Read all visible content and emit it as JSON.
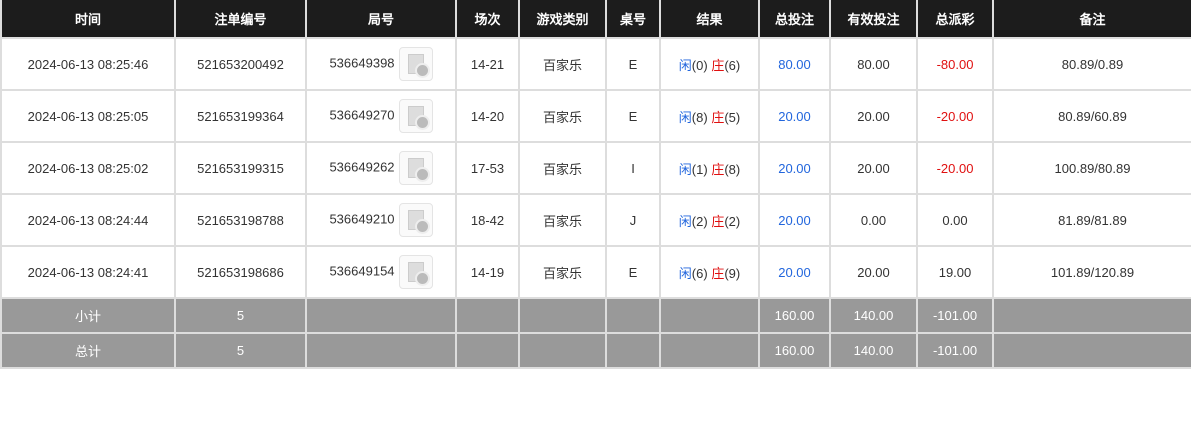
{
  "headers": [
    "时间",
    "注单编号",
    "局号",
    "场次",
    "游戏类别",
    "桌号",
    "结果",
    "总投注",
    "有效投注",
    "总派彩",
    "备注"
  ],
  "rows": [
    {
      "time": "2024-06-13 08:25:46",
      "bet_id": "521653200492",
      "round": "536649398",
      "shoe": "14-21",
      "game": "百家乐",
      "table": "E",
      "player": "闲",
      "player_val": "(0)",
      "banker": "庄",
      "banker_val": "(6)",
      "total_bet": "80.00",
      "valid_bet": "80.00",
      "payout": "-80.00",
      "note": "80.89/0.89"
    },
    {
      "time": "2024-06-13 08:25:05",
      "bet_id": "521653199364",
      "round": "536649270",
      "shoe": "14-20",
      "game": "百家乐",
      "table": "E",
      "player": "闲",
      "player_val": "(8)",
      "banker": "庄",
      "banker_val": "(5)",
      "total_bet": "20.00",
      "valid_bet": "20.00",
      "payout": "-20.00",
      "note": "80.89/60.89"
    },
    {
      "time": "2024-06-13 08:25:02",
      "bet_id": "521653199315",
      "round": "536649262",
      "shoe": "17-53",
      "game": "百家乐",
      "table": "I",
      "player": "闲",
      "player_val": "(1)",
      "banker": "庄",
      "banker_val": "(8)",
      "total_bet": "20.00",
      "valid_bet": "20.00",
      "payout": "-20.00",
      "note": "100.89/80.89"
    },
    {
      "time": "2024-06-13 08:24:44",
      "bet_id": "521653198788",
      "round": "536649210",
      "shoe": "18-42",
      "game": "百家乐",
      "table": "J",
      "player": "闲",
      "player_val": "(2)",
      "banker": "庄",
      "banker_val": "(2)",
      "total_bet": "20.00",
      "valid_bet": "0.00",
      "payout": "0.00",
      "note": "81.89/81.89"
    },
    {
      "time": "2024-06-13 08:24:41",
      "bet_id": "521653198686",
      "round": "536649154",
      "shoe": "14-19",
      "game": "百家乐",
      "table": "E",
      "player": "闲",
      "player_val": "(6)",
      "banker": "庄",
      "banker_val": "(9)",
      "total_bet": "20.00",
      "valid_bet": "20.00",
      "payout": "19.00",
      "note": "101.89/120.89"
    }
  ],
  "subtotal": {
    "label": "小计",
    "count": "5",
    "total_bet": "160.00",
    "valid_bet": "140.00",
    "payout": "-101.00"
  },
  "total": {
    "label": "总计",
    "count": "5",
    "total_bet": "160.00",
    "valid_bet": "140.00",
    "payout": "-101.00"
  },
  "colors": {
    "header_bg": "#1c1c1c",
    "blue": "#2266dd",
    "red": "#e01010",
    "summary_bg": "#999999"
  },
  "icons": {
    "replay": "video-replay-icon"
  }
}
